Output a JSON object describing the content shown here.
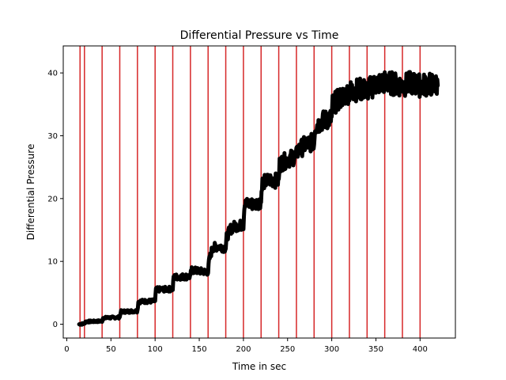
{
  "chart_data": {
    "type": "line",
    "title": "Differential Pressure vs Time",
    "xlabel": "Time in sec",
    "ylabel": "Differential Pressure",
    "xlim": [
      -4,
      440
    ],
    "ylim": [
      -2.2,
      44.3
    ],
    "xticks": [
      0,
      50,
      100,
      150,
      200,
      250,
      300,
      350,
      400
    ],
    "yticks": [
      0,
      10,
      20,
      30,
      40
    ],
    "grid": false,
    "colors": {
      "series": "#000000",
      "markers": "#d62728",
      "axes": "#000000",
      "background": "#ffffff"
    },
    "vertical_lines": [
      15,
      20,
      40,
      60,
      80,
      100,
      120,
      140,
      160,
      180,
      200,
      220,
      240,
      260,
      280,
      300,
      320,
      340,
      360,
      380,
      400
    ],
    "series": [
      {
        "x": [
          14,
          20,
          21,
          40,
          41,
          60,
          61,
          80,
          81,
          100,
          101,
          120,
          121,
          140,
          141,
          160,
          161,
          165,
          172,
          180,
          181,
          185,
          190,
          200,
          201,
          205,
          212,
          220,
          221,
          230,
          240,
          241,
          250,
          260,
          261,
          270,
          280,
          281,
          290,
          300,
          301,
          310,
          320,
          330,
          340,
          350,
          360,
          370,
          380,
          390,
          400,
          410,
          420
        ],
        "y": [
          0,
          0.1,
          0.4,
          0.5,
          1.0,
          1.1,
          2.0,
          2.1,
          3.6,
          3.7,
          5.5,
          5.6,
          7.5,
          7.6,
          8.6,
          8.3,
          10,
          12.2,
          12.4,
          12.1,
          13.8,
          15.1,
          15.6,
          15.8,
          19,
          19.2,
          19.1,
          19.5,
          22.5,
          23.0,
          22.8,
          25.5,
          26.2,
          26.8,
          27.5,
          28.6,
          29.0,
          31.5,
          32.4,
          32.8,
          35.0,
          36.0,
          37.0,
          37.4,
          37.3,
          38.2,
          38.5,
          38.3,
          38.0,
          38.4,
          38.0,
          38.2,
          38.0
        ]
      }
    ]
  }
}
